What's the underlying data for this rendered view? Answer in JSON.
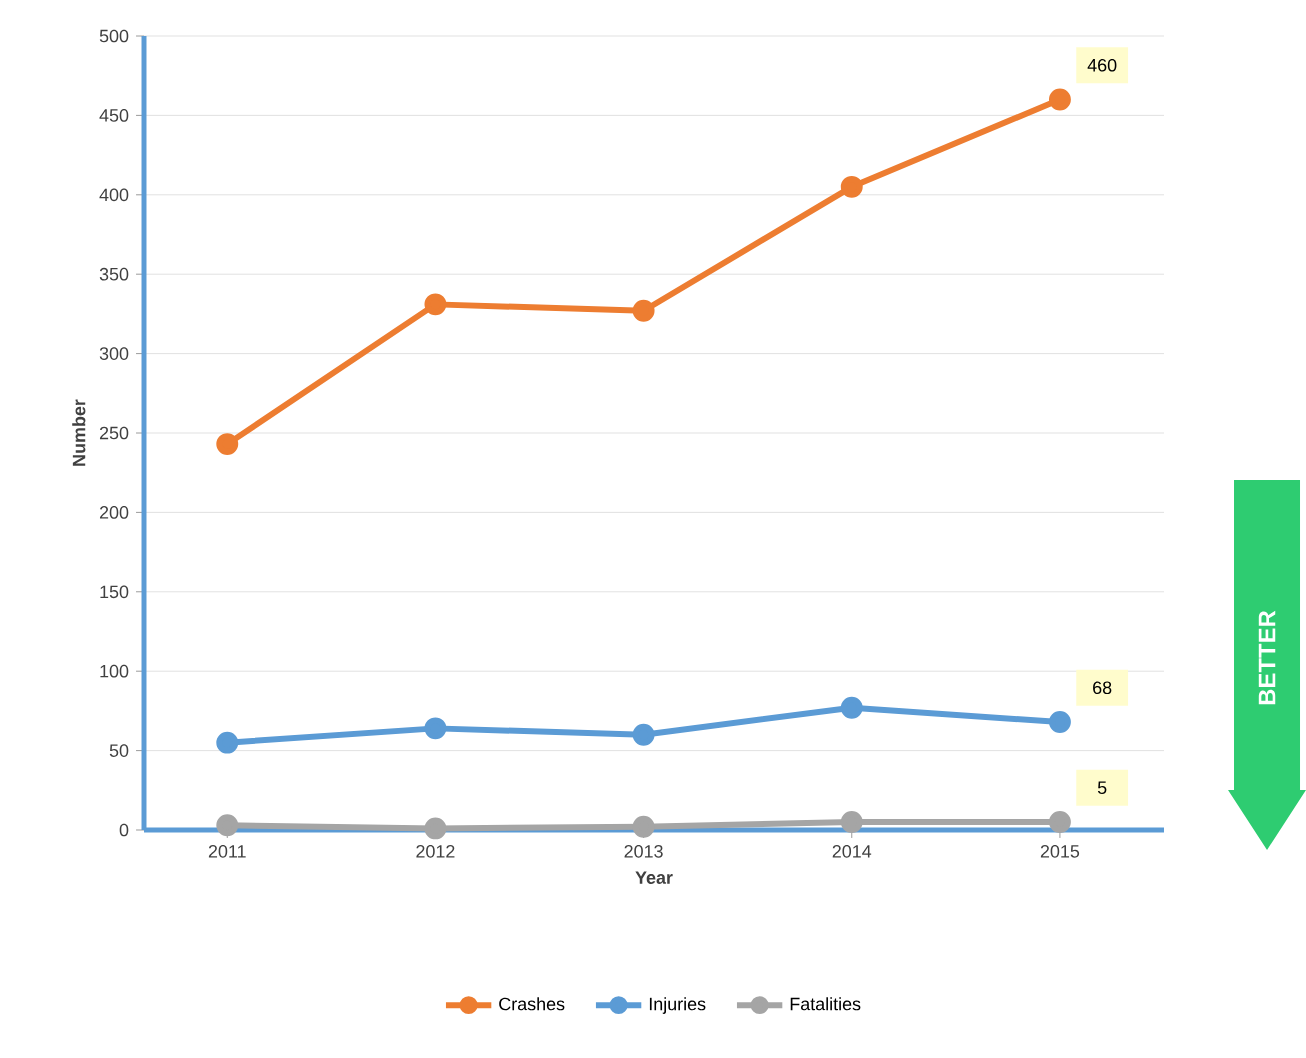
{
  "chart_data": {
    "type": "line",
    "xlabel": "Year",
    "ylabel": "Number",
    "categories": [
      "2011",
      "2012",
      "2013",
      "2014",
      "2015"
    ],
    "series": [
      {
        "name": "Crashes",
        "color": "#ed7d31",
        "values": [
          243,
          331,
          327,
          405,
          460
        ],
        "value_labels": [
          null,
          null,
          null,
          null,
          "460"
        ]
      },
      {
        "name": "Injuries",
        "color": "#5b9bd5",
        "values": [
          55,
          64,
          60,
          77,
          68
        ],
        "value_labels": [
          null,
          null,
          null,
          null,
          "68"
        ]
      },
      {
        "name": "Fatalities",
        "color": "#a5a5a5",
        "values": [
          3,
          1,
          2,
          5,
          5
        ],
        "value_labels": [
          null,
          null,
          null,
          null,
          "5"
        ]
      }
    ],
    "ylim": [
      0,
      500
    ],
    "yticks": [
      0,
      50,
      100,
      150,
      200,
      250,
      300,
      350,
      400,
      450,
      500
    ],
    "grid": "y",
    "legend": "bottom",
    "marker": "circle",
    "line_style": "solid",
    "annotations": [
      "BETTER"
    ]
  }
}
